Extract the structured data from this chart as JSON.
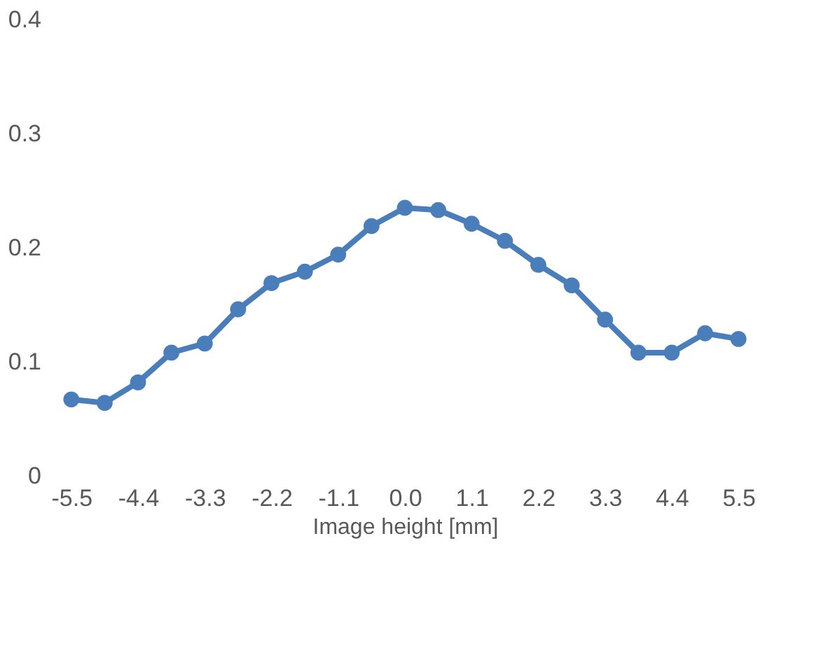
{
  "chart_data": {
    "type": "line",
    "xlabel": "Image height [mm]",
    "categories": [
      "-5.5",
      null,
      "-4.4",
      null,
      "-3.3",
      null,
      "-2.2",
      null,
      "-1.1",
      null,
      "0.0",
      null,
      "1.1",
      null,
      "2.2",
      null,
      "3.3",
      null,
      "4.4",
      null,
      "5.5"
    ],
    "series": [
      {
        "color": "#4a7ebb",
        "values": [
          0.067,
          0.064,
          0.082,
          0.108,
          0.116,
          0.146,
          0.169,
          0.179,
          0.194,
          0.219,
          0.235,
          0.233,
          0.221,
          0.206,
          0.185,
          0.167,
          0.137,
          0.108,
          0.108,
          0.125,
          0.12
        ]
      }
    ],
    "ylim": [
      0,
      0.4
    ],
    "yticks": [
      0,
      0.1,
      0.2,
      0.3,
      0.4
    ],
    "marker": "circle",
    "line_style": "solid",
    "grid": false
  }
}
